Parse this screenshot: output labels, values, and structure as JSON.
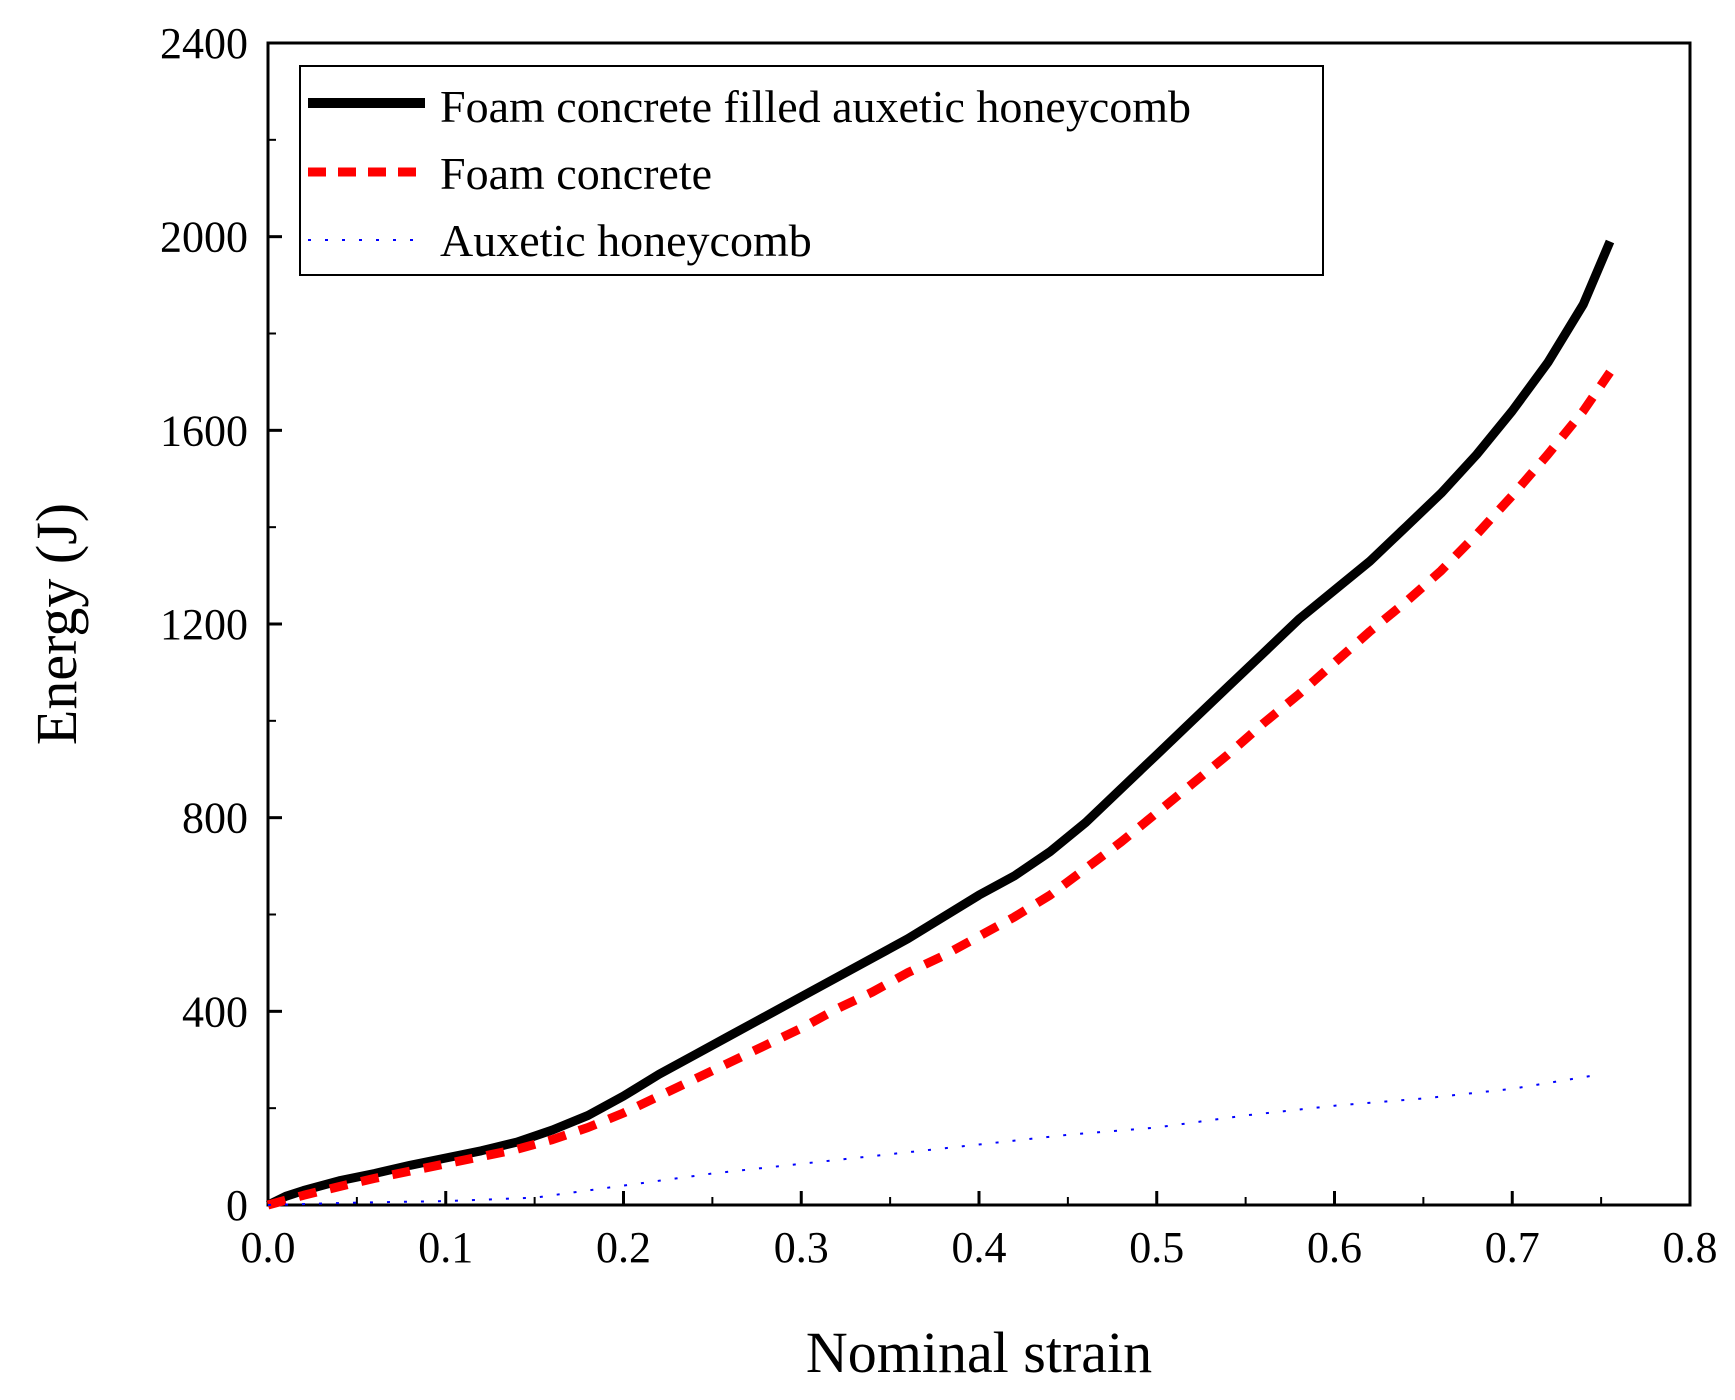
{
  "chart_data": {
    "type": "line",
    "title": "",
    "xlabel": "Nominal strain",
    "ylabel": "Energy (J)",
    "xlim": [
      0.0,
      0.8
    ],
    "ylim": [
      0,
      2400
    ],
    "xticks": [
      "0.0",
      "0.1",
      "0.2",
      "0.3",
      "0.4",
      "0.5",
      "0.6",
      "0.7",
      "0.8"
    ],
    "yticks": [
      "0",
      "400",
      "800",
      "1200",
      "1600",
      "2000",
      "2400"
    ],
    "legend_position": "top-left",
    "grid": false,
    "series": [
      {
        "name": "Foam concrete filled auxetic honeycomb",
        "color": "#000000",
        "style": "solid",
        "x": [
          0.0,
          0.01,
          0.02,
          0.04,
          0.06,
          0.08,
          0.1,
          0.12,
          0.14,
          0.16,
          0.18,
          0.2,
          0.22,
          0.24,
          0.26,
          0.28,
          0.3,
          0.32,
          0.34,
          0.36,
          0.38,
          0.4,
          0.42,
          0.44,
          0.46,
          0.48,
          0.5,
          0.52,
          0.54,
          0.56,
          0.58,
          0.6,
          0.62,
          0.64,
          0.66,
          0.68,
          0.7,
          0.72,
          0.74,
          0.755
        ],
        "y": [
          0,
          18,
          30,
          50,
          65,
          82,
          97,
          112,
          130,
          155,
          185,
          225,
          270,
          310,
          350,
          390,
          430,
          470,
          510,
          550,
          595,
          640,
          680,
          730,
          790,
          860,
          930,
          1000,
          1070,
          1140,
          1210,
          1270,
          1330,
          1400,
          1470,
          1550,
          1640,
          1740,
          1860,
          1990
        ]
      },
      {
        "name": "Foam concrete",
        "color": "#ff0000",
        "style": "dashed",
        "x": [
          0.0,
          0.02,
          0.04,
          0.06,
          0.08,
          0.1,
          0.12,
          0.14,
          0.16,
          0.18,
          0.2,
          0.22,
          0.24,
          0.26,
          0.28,
          0.3,
          0.32,
          0.34,
          0.36,
          0.38,
          0.4,
          0.42,
          0.44,
          0.46,
          0.48,
          0.5,
          0.52,
          0.54,
          0.56,
          0.58,
          0.6,
          0.62,
          0.64,
          0.66,
          0.68,
          0.7,
          0.72,
          0.74,
          0.755
        ],
        "y": [
          0,
          20,
          38,
          55,
          70,
          85,
          100,
          115,
          135,
          160,
          190,
          225,
          260,
          295,
          330,
          365,
          405,
          440,
          480,
          515,
          555,
          595,
          640,
          695,
          750,
          810,
          870,
          930,
          995,
          1055,
          1120,
          1185,
          1245,
          1310,
          1385,
          1465,
          1550,
          1640,
          1720
        ]
      },
      {
        "name": "Auxetic honeycomb",
        "color": "#0000ff",
        "style": "dotted",
        "x": [
          0.0,
          0.05,
          0.1,
          0.15,
          0.2,
          0.25,
          0.3,
          0.35,
          0.4,
          0.45,
          0.5,
          0.55,
          0.6,
          0.65,
          0.7,
          0.75
        ],
        "y": [
          0,
          5,
          8,
          15,
          40,
          65,
          85,
          105,
          125,
          145,
          160,
          185,
          205,
          220,
          240,
          270
        ]
      }
    ]
  }
}
